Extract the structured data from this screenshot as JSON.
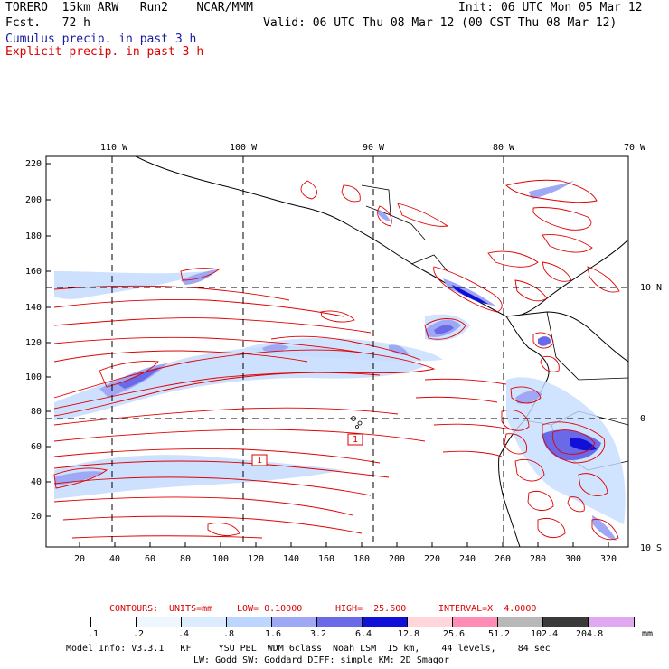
{
  "header": {
    "model": "TORERO  15km ARW   Run2    NCAR/MMM",
    "init": "Init: 06 UTC Mon 05 Mar 12",
    "fcst": "Fcst.   72 h",
    "valid": "Valid: 06 UTC Thu 08 Mar 12 (00 CST Thu 08 Mar 12)",
    "cumulus_label": "Cumulus precip. in past 3 h",
    "explicit_label": "Explicit precip. in past 3 h"
  },
  "lon_labels": [
    "110 W",
    "100 W",
    "90 W",
    "80 W",
    "70 W"
  ],
  "lat_labels": [
    "10 N",
    "0",
    "10 S"
  ],
  "y_ticks": [
    "220",
    "200",
    "180",
    "160",
    "140",
    "120",
    "100",
    "80",
    "60",
    "40",
    "20"
  ],
  "x_ticks": [
    "20",
    "40",
    "60",
    "80",
    "100",
    "120",
    "140",
    "160",
    "180",
    "200",
    "220",
    "240",
    "260",
    "280",
    "300",
    "320"
  ],
  "box_labels": [
    "1",
    "1"
  ],
  "contour_info": {
    "title": "CONTOURS:",
    "units": "UNITS=mm",
    "low": "LOW= 0.10000",
    "high": "HIGH=  25.600",
    "interval": "INTERVAL=X  4.0000"
  },
  "colorbar": {
    "labels": [
      ".1",
      ".2",
      ".4",
      ".8",
      "1.6",
      "3.2",
      "6.4",
      "12.8",
      "25.6",
      "51.2",
      "102.4",
      "204.8"
    ],
    "colors": [
      "#ffffff",
      "#ffffff",
      "#eef6ff",
      "#dcecff",
      "#bcd6ff",
      "#9ea8f5",
      "#6a6ae8",
      "#1010d8",
      "#ffd6dc",
      "#ff8cb4",
      "#b8b8b8",
      "#3a3a3a",
      "#e0a8f0"
    ],
    "unit": "mm"
  },
  "model_info": {
    "line1": "Model Info: V3.3.1   KF     YSU PBL  WDM 6class  Noah LSM  15 km,    44 levels,    84 sec",
    "line2": "LW: Godd SW: Goddard DIFF: simple KM: 2D Smagor"
  }
}
